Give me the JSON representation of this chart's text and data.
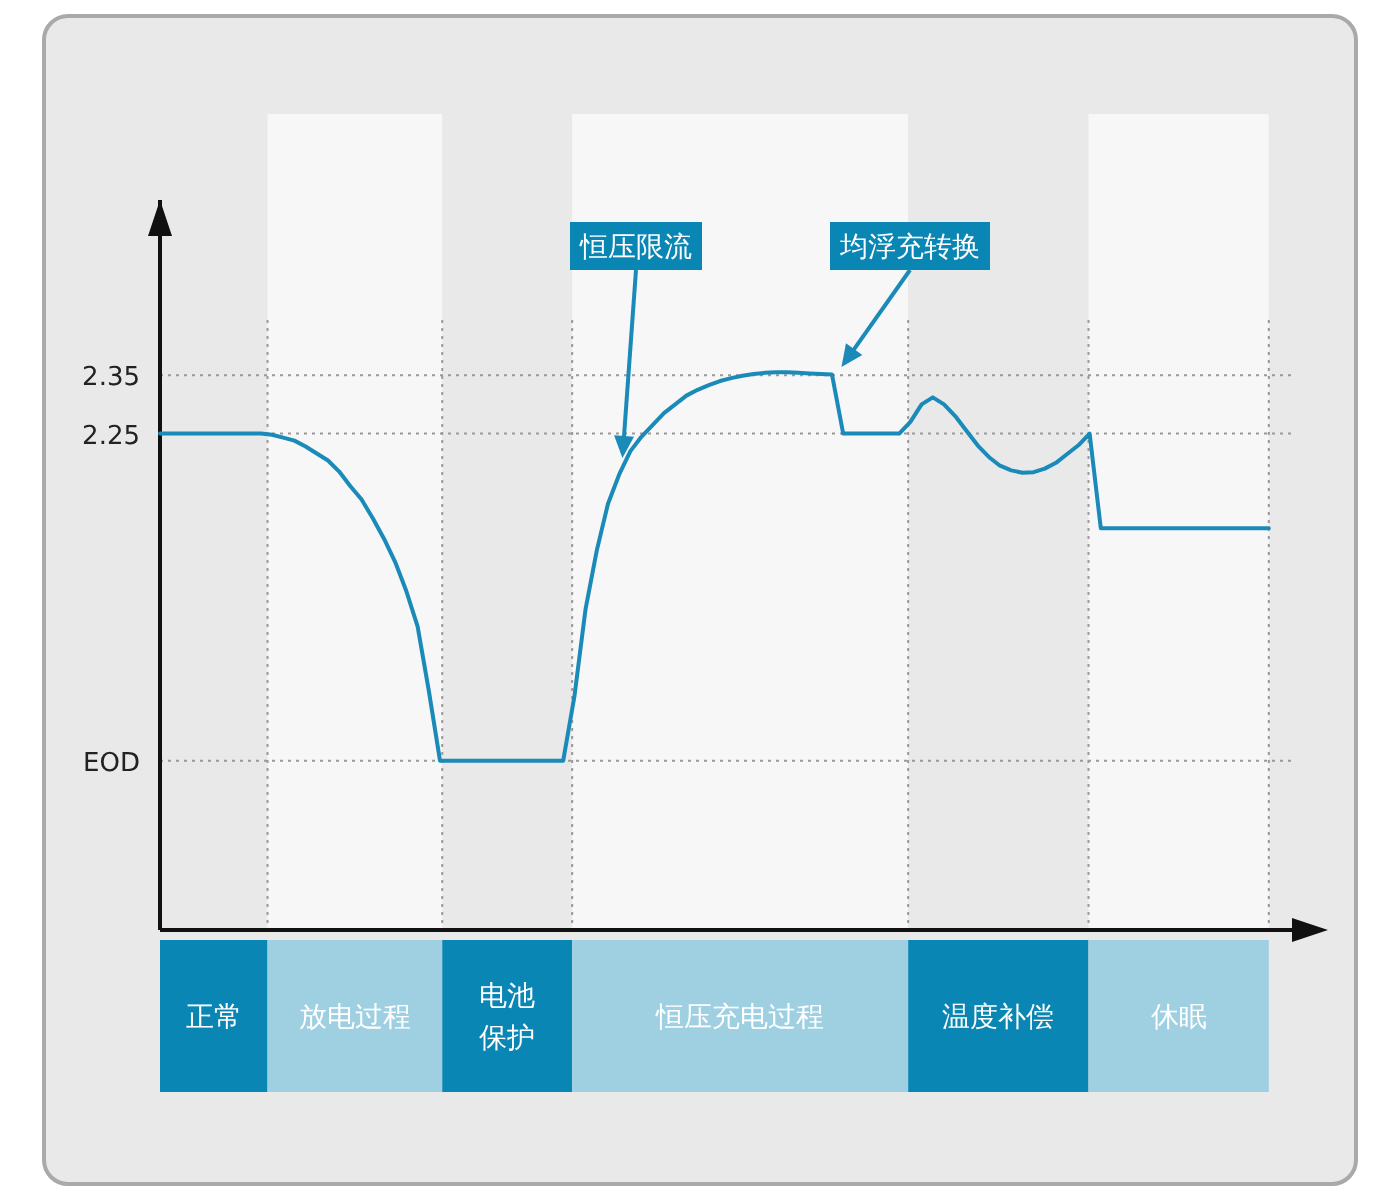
{
  "chart_data": {
    "type": "line",
    "categories": [
      null,
      null,
      null,
      null,
      null,
      null,
      null,
      null,
      null,
      null,
      null,
      null,
      null,
      null,
      null,
      null,
      null,
      null,
      null,
      null,
      null,
      null,
      null,
      null,
      null,
      null,
      null,
      null,
      null,
      null,
      null,
      null,
      null,
      null,
      null,
      null,
      null,
      null,
      null,
      null,
      null,
      null,
      null,
      null,
      null,
      null,
      null,
      null,
      null,
      null,
      null,
      null,
      null,
      null,
      null,
      null,
      null,
      null,
      null,
      null,
      null,
      null,
      null,
      null,
      null,
      null,
      null,
      null,
      null,
      null,
      null,
      null,
      null,
      null,
      null,
      null,
      null,
      null,
      null,
      null,
      null,
      null,
      null,
      null,
      null,
      null,
      null,
      null,
      null,
      null,
      null,
      null,
      null,
      null,
      null,
      null,
      null,
      null,
      null,
      null
    ],
    "ylim": [
      1.4,
      2.65
    ],
    "yticks": [
      {
        "value": 1.69,
        "label": "EOD"
      },
      2.25,
      2.35
    ],
    "tick_labels": "y",
    "grid": "y",
    "series": [
      {
        "color": "#1a8ab8",
        "values": [
          2.25,
          2.25,
          2.25,
          2.25,
          2.25,
          2.25,
          2.25,
          2.25,
          2.25,
          2.25,
          2.248,
          2.243,
          2.238,
          2.228,
          2.216,
          2.204,
          2.185,
          2.16,
          2.137,
          2.105,
          2.07,
          2.03,
          1.98,
          1.92,
          1.81,
          1.69,
          1.69,
          1.69,
          1.69,
          1.69,
          1.69,
          1.69,
          1.69,
          1.69,
          1.69,
          1.69,
          1.69,
          1.8,
          1.95,
          2.05,
          2.13,
          2.18,
          2.22,
          2.245,
          2.265,
          2.285,
          2.3,
          2.315,
          2.325,
          2.333,
          2.34,
          2.345,
          2.349,
          2.352,
          2.354,
          2.355,
          2.355,
          2.354,
          2.353,
          2.352,
          2.351,
          2.25,
          2.25,
          2.25,
          2.25,
          2.25,
          2.25,
          2.27,
          2.3,
          2.312,
          2.3,
          2.28,
          2.255,
          2.23,
          2.21,
          2.195,
          2.187,
          2.183,
          2.184,
          2.19,
          2.2,
          2.215,
          2.23,
          2.25,
          2.088,
          2.088,
          2.088,
          2.088,
          2.088,
          2.088,
          2.088,
          2.088,
          2.088,
          2.088,
          2.088,
          2.088,
          2.088,
          2.088,
          2.088,
          2.088
        ]
      }
    ],
    "annotations": [
      "恒压限流",
      "均浮充转换",
      "正常",
      "放电过程",
      "电池保护",
      "恒压充电过程",
      "温度补偿",
      "休眠"
    ]
  }
}
